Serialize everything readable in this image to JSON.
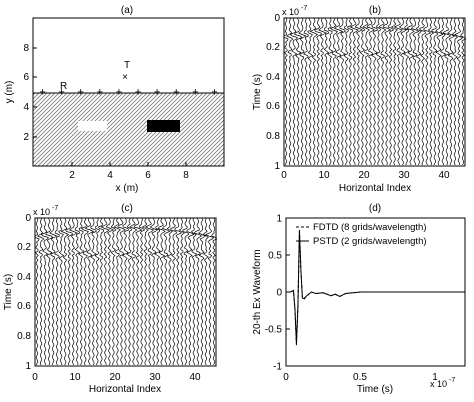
{
  "chart_data": [
    {
      "type": "other",
      "panel_label": "(a)",
      "xlabel": "x (m)",
      "ylabel": "y (m)",
      "xlim": [
        0,
        10
      ],
      "ylim": [
        0,
        10
      ],
      "xticks": [
        "2",
        "4",
        "6",
        "8"
      ],
      "yticks": [
        "2",
        "4",
        "6",
        "8"
      ],
      "ground_level_y": 5,
      "source": {
        "label": "T",
        "x": 4.5,
        "y": 6.5
      },
      "receivers": {
        "label": "R",
        "y": 5,
        "x": [
          0.5,
          1.5,
          2.5,
          3.5,
          4.5,
          5.5,
          6.5,
          7.5,
          8.5,
          9.5
        ]
      },
      "objects": [
        {
          "name": "white",
          "x": [
            3.2,
            4.8
          ],
          "y": [
            3.3,
            4.0
          ],
          "color": "#ffffff"
        },
        {
          "name": "black",
          "x": [
            6.0,
            7.6
          ],
          "y": [
            3.3,
            4.1
          ],
          "color": "#000000"
        }
      ],
      "grid": false
    },
    {
      "type": "line",
      "panel_label": "(b)",
      "xlabel": "Horizontal Index",
      "ylabel": "Time (s)",
      "scale_label": "x 10",
      "scale_exponent": "-7",
      "xlim": [
        0,
        45
      ],
      "ylim": [
        1.0,
        0
      ],
      "xticks": [
        "0",
        "10",
        "20",
        "30",
        "40"
      ],
      "yticks": [
        "0",
        "0.2",
        "0.4",
        "0.6",
        "0.8",
        "1"
      ],
      "traces": 45,
      "grid": false
    },
    {
      "type": "line",
      "panel_label": "(c)",
      "xlabel": "Horizontal Index",
      "ylabel": "Time (s)",
      "scale_label": "x 10",
      "scale_exponent": "-7",
      "xlim": [
        0,
        45
      ],
      "ylim": [
        1.0,
        0
      ],
      "xticks": [
        "0",
        "10",
        "20",
        "30",
        "40"
      ],
      "yticks": [
        "0",
        "0.2",
        "0.4",
        "0.6",
        "0.8",
        "1"
      ],
      "traces": 45,
      "grid": false
    },
    {
      "type": "line",
      "panel_label": "(d)",
      "xlabel": "Time (s)",
      "ylabel": "20-th Ex Waveform",
      "scale_label": "x 10",
      "scale_exponent": "-7",
      "xlim": [
        0,
        1.2
      ],
      "ylim": [
        -1,
        1
      ],
      "xticks": [
        "0",
        "0.5",
        "1"
      ],
      "yticks": [
        "-1",
        "-0.5",
        "0",
        "0.5",
        "1"
      ],
      "legend_position": "top-right",
      "series": [
        {
          "name": "FDTD (8 grids/wavelength)",
          "style": "dashed",
          "x": [
            0,
            0.03,
            0.05,
            0.06,
            0.07,
            0.08,
            0.09,
            0.1,
            0.11,
            0.12,
            0.14,
            0.17,
            0.2,
            0.25,
            0.3,
            0.33,
            0.36,
            0.4,
            0.5,
            0.7,
            1.0,
            1.2
          ],
          "y": [
            0,
            0,
            0.02,
            -0.25,
            -0.72,
            -0.2,
            0.85,
            0.3,
            -0.08,
            -0.1,
            -0.05,
            0.0,
            -0.02,
            -0.01,
            -0.05,
            -0.03,
            -0.06,
            -0.02,
            0,
            0,
            0,
            0
          ]
        },
        {
          "name": "PSTD (2 grids/wavelength)",
          "style": "solid",
          "x": [
            0,
            0.03,
            0.05,
            0.06,
            0.07,
            0.08,
            0.09,
            0.1,
            0.11,
            0.12,
            0.14,
            0.17,
            0.2,
            0.25,
            0.3,
            0.33,
            0.36,
            0.4,
            0.5,
            0.7,
            1.0,
            1.2
          ],
          "y": [
            0,
            0,
            0.02,
            -0.22,
            -0.7,
            -0.18,
            0.83,
            0.28,
            -0.08,
            -0.09,
            -0.05,
            0.0,
            -0.02,
            -0.01,
            -0.05,
            -0.03,
            -0.06,
            -0.02,
            0,
            0,
            0,
            0
          ]
        }
      ],
      "grid": false
    }
  ]
}
